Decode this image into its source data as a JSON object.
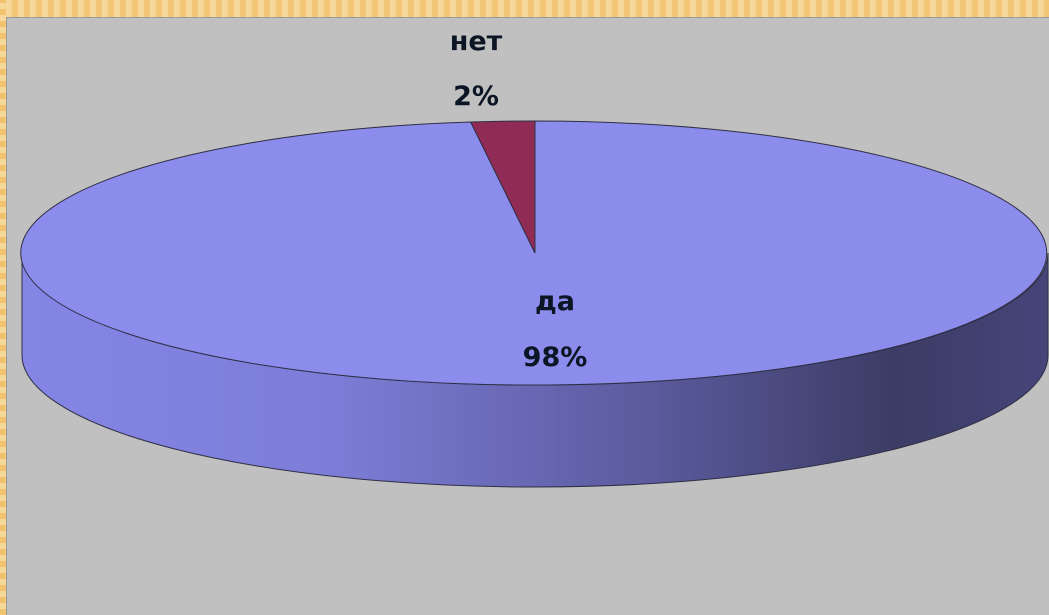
{
  "chart_data": {
    "type": "pie",
    "style": "3d",
    "title": "",
    "categories": [
      "нет",
      "да"
    ],
    "values": [
      2,
      98
    ],
    "labels": [
      {
        "category": "нет",
        "percent": "2%"
      },
      {
        "category": "да",
        "percent": "98%"
      }
    ],
    "colors": {
      "нет": "#8f2b55",
      "да": "#8c8cec",
      "да_side_dark": "#3d3d66"
    },
    "legend": "none",
    "background": "#c0c0c0"
  }
}
